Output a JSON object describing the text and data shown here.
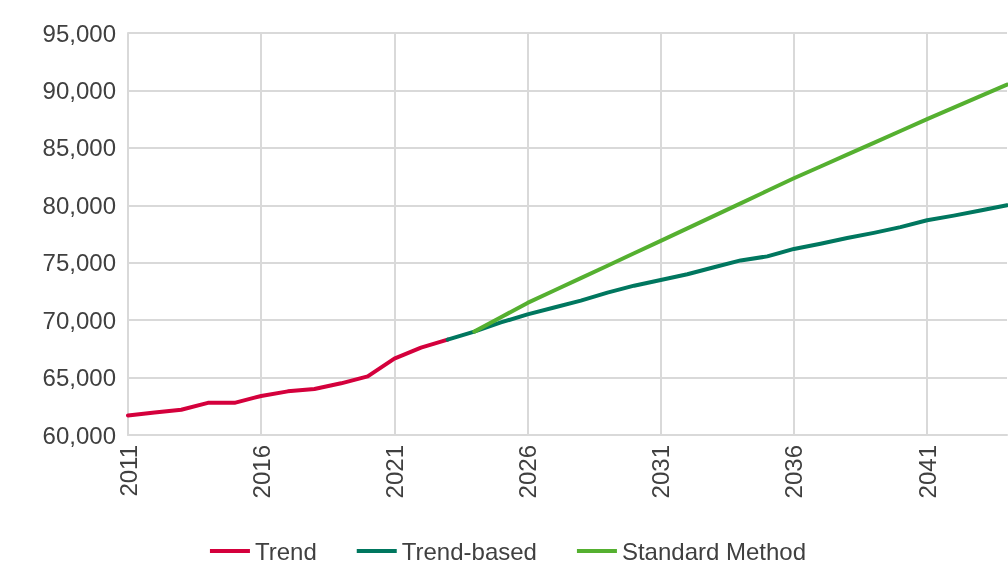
{
  "chart_data": {
    "type": "line",
    "series": [
      {
        "name": "Trend",
        "color": "#d4003c",
        "x": [
          2011,
          2012,
          2013,
          2014,
          2015,
          2016,
          2017,
          2018,
          2019,
          2020,
          2021,
          2022,
          2023
        ],
        "values": [
          61700,
          61950,
          62200,
          62800,
          62800,
          63400,
          63800,
          64000,
          64500,
          65100,
          66650,
          67600,
          68300
        ]
      },
      {
        "name": "Trend-based",
        "color": "#00775f",
        "x": [
          2023,
          2024,
          2025,
          2026,
          2027,
          2028,
          2029,
          2030,
          2031,
          2032,
          2033,
          2034,
          2035,
          2036,
          2037,
          2038,
          2039,
          2040,
          2041,
          2042,
          2043,
          2044
        ],
        "values": [
          68300,
          69000,
          69800,
          70500,
          71100,
          71700,
          72400,
          73000,
          73500,
          74000,
          74600,
          75200,
          75550,
          76200,
          76650,
          77150,
          77600,
          78100,
          78700,
          79100,
          79550,
          80000
        ]
      },
      {
        "name": "Standard Method",
        "color": "#55b030",
        "x": [
          2024,
          2025,
          2026,
          2027,
          2028,
          2029,
          2030,
          2031,
          2032,
          2033,
          2034,
          2035,
          2036,
          2037,
          2038,
          2039,
          2040,
          2041,
          2042,
          2043,
          2044
        ],
        "values": [
          69000,
          70250,
          71500,
          72580,
          73660,
          74740,
          75820,
          76900,
          77990,
          79080,
          80170,
          81260,
          82350,
          83380,
          84410,
          85440,
          86470,
          87500,
          88500,
          89500,
          90500
        ]
      }
    ],
    "xlim": [
      2011,
      2044
    ],
    "xticks": [
      2011,
      2016,
      2021,
      2026,
      2031,
      2036,
      2041
    ],
    "ylim": [
      60000,
      95000
    ],
    "yticks": [
      {
        "value": 60000,
        "label": "60,000"
      },
      {
        "value": 65000,
        "label": "65,000"
      },
      {
        "value": 70000,
        "label": "70,000"
      },
      {
        "value": 75000,
        "label": "75,000"
      },
      {
        "value": 80000,
        "label": "80,000"
      },
      {
        "value": 85000,
        "label": "85,000"
      },
      {
        "value": 90000,
        "label": "90,000"
      },
      {
        "value": 95000,
        "label": "95,000"
      }
    ],
    "grid": true,
    "legend": "bottom",
    "marker": "none",
    "line_style": "solid"
  }
}
